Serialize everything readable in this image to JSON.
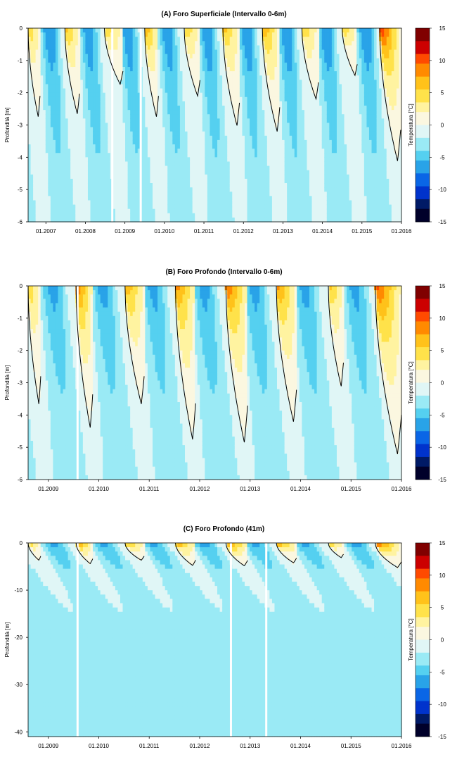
{
  "figure": {
    "colorbar": {
      "label": "Temperatura [°C]",
      "min": -15,
      "max": 15,
      "ticks": [
        15,
        10,
        5,
        0,
        -5,
        -10,
        -15
      ],
      "stops": [
        "#00002a",
        "#001a66",
        "#0033cc",
        "#0a66e6",
        "#29a3e8",
        "#55d0f0",
        "#9aeaf5",
        "#e0f6f6",
        "#fbf7e0",
        "#fff3a0",
        "#ffe24a",
        "#ffc21a",
        "#ff8a00",
        "#ff4a00",
        "#cc0000",
        "#800000"
      ]
    },
    "colors": {
      "background": "#ffffff",
      "zero_contour": "#000000"
    }
  },
  "chart_data": [
    {
      "type": "heatmap",
      "title": "(A) Foro Superficiale (Intervallo 0-6m)",
      "xlabel": "",
      "ylabel": "Profondità [m]",
      "ylim": [
        -6,
        0
      ],
      "yticks": [
        0,
        -1,
        -2,
        -3,
        -4,
        -5,
        -6
      ],
      "xlim": [
        2006.55,
        2016.0
      ],
      "xticks": [
        {
          "value": 2007,
          "label": "01.2007"
        },
        {
          "value": 2008,
          "label": "01.2008"
        },
        {
          "value": 2009,
          "label": "01.2009"
        },
        {
          "value": 2010,
          "label": "01.2010"
        },
        {
          "value": 2011,
          "label": "01.2011"
        },
        {
          "value": 2012,
          "label": "01.2012"
        },
        {
          "value": 2013,
          "label": "01.2013"
        },
        {
          "value": 2014,
          "label": "01.2014"
        },
        {
          "value": 2015,
          "label": "01.2015"
        },
        {
          "value": 2016,
          "label": "01.2016"
        }
      ],
      "thaw_seasons": [
        {
          "start": 2006.55,
          "end": 2006.85,
          "max_depth": -3.0,
          "peak_temp": 6
        },
        {
          "start": 2007.48,
          "end": 2007.85,
          "max_depth": -2.9,
          "peak_temp": 7
        },
        {
          "start": 2008.48,
          "end": 2008.95,
          "max_depth": -1.9,
          "peak_temp": 6
        },
        {
          "start": 2009.5,
          "end": 2009.85,
          "max_depth": -3.0,
          "peak_temp": 8
        },
        {
          "start": 2010.5,
          "end": 2010.9,
          "max_depth": -2.3,
          "peak_temp": 6
        },
        {
          "start": 2011.48,
          "end": 2011.9,
          "max_depth": -3.3,
          "peak_temp": 7
        },
        {
          "start": 2012.48,
          "end": 2012.92,
          "max_depth": -3.5,
          "peak_temp": 8
        },
        {
          "start": 2013.48,
          "end": 2013.9,
          "max_depth": -2.4,
          "peak_temp": 6
        },
        {
          "start": 2014.5,
          "end": 2014.88,
          "max_depth": -1.6,
          "peak_temp": 6
        },
        {
          "start": 2015.45,
          "end": 2015.98,
          "max_depth": -4.5,
          "peak_temp": 12
        }
      ],
      "winter_min_temp": -8,
      "deep_temp": -2,
      "data_gaps": [
        2008.68,
        2009.4
      ]
    },
    {
      "type": "heatmap",
      "title": "(B) Foro Profondo (Intervallo 0-6m)",
      "xlabel": "",
      "ylabel": "Profondità [m]",
      "ylim": [
        -6,
        0
      ],
      "yticks": [
        0,
        -1,
        -2,
        -3,
        -4,
        -5,
        -6
      ],
      "xlim": [
        2008.6,
        2016.0
      ],
      "xticks": [
        {
          "value": 2009,
          "label": "01.2009"
        },
        {
          "value": 2010,
          "label": "01.2010"
        },
        {
          "value": 2011,
          "label": "01.2011"
        },
        {
          "value": 2012,
          "label": "01.2012"
        },
        {
          "value": 2013,
          "label": "01.2013"
        },
        {
          "value": 2014,
          "label": "01.2014"
        },
        {
          "value": 2015,
          "label": "01.2015"
        },
        {
          "value": 2016,
          "label": "01.2016"
        }
      ],
      "thaw_seasons": [
        {
          "start": 2008.6,
          "end": 2008.85,
          "max_depth": -4.0,
          "peak_temp": 6
        },
        {
          "start": 2009.55,
          "end": 2009.88,
          "max_depth": -4.8,
          "peak_temp": 10
        },
        {
          "start": 2010.52,
          "end": 2010.9,
          "max_depth": -4.0,
          "peak_temp": 8
        },
        {
          "start": 2011.52,
          "end": 2011.92,
          "max_depth": -5.2,
          "peak_temp": 9
        },
        {
          "start": 2012.52,
          "end": 2012.95,
          "max_depth": -5.3,
          "peak_temp": 10
        },
        {
          "start": 2013.52,
          "end": 2013.92,
          "max_depth": -4.6,
          "peak_temp": 9
        },
        {
          "start": 2014.55,
          "end": 2014.85,
          "max_depth": -3.4,
          "peak_temp": 7
        },
        {
          "start": 2015.48,
          "end": 2016.0,
          "max_depth": -5.7,
          "peak_temp": 11
        }
      ],
      "winter_min_temp": -7,
      "deep_temp": -2,
      "data_gaps": [
        2009.58
      ]
    },
    {
      "type": "heatmap",
      "title": "(C) Foro Profondo (41m)",
      "xlabel": "",
      "ylabel": "Profondità [m]",
      "ylim": [
        -41,
        0
      ],
      "yticks": [
        0,
        -10,
        -20,
        -30,
        -40
      ],
      "xlim": [
        2008.6,
        2016.0
      ],
      "xticks": [
        {
          "value": 2009,
          "label": "01.2009"
        },
        {
          "value": 2010,
          "label": "01.2010"
        },
        {
          "value": 2011,
          "label": "01.2011"
        },
        {
          "value": 2012,
          "label": "01.2012"
        },
        {
          "value": 2013,
          "label": "01.2013"
        },
        {
          "value": 2014,
          "label": "01.2014"
        },
        {
          "value": 2015,
          "label": "01.2015"
        },
        {
          "value": 2016,
          "label": "01.2016"
        }
      ],
      "thaw_seasons": [
        {
          "start": 2008.6,
          "end": 2008.85,
          "max_depth": -4.0,
          "peak_temp": 6
        },
        {
          "start": 2009.55,
          "end": 2009.88,
          "max_depth": -4.8,
          "peak_temp": 10
        },
        {
          "start": 2010.52,
          "end": 2010.9,
          "max_depth": -4.0,
          "peak_temp": 8
        },
        {
          "start": 2011.52,
          "end": 2011.92,
          "max_depth": -5.2,
          "peak_temp": 9
        },
        {
          "start": 2012.52,
          "end": 2012.95,
          "max_depth": -5.3,
          "peak_temp": 10
        },
        {
          "start": 2013.52,
          "end": 2013.92,
          "max_depth": -4.6,
          "peak_temp": 9
        },
        {
          "start": 2014.55,
          "end": 2014.85,
          "max_depth": -3.4,
          "peak_temp": 7
        },
        {
          "start": 2015.48,
          "end": 2016.0,
          "max_depth": -5.7,
          "peak_temp": 11
        }
      ],
      "winter_min_temp": -7,
      "deep_temp": -2,
      "data_gaps": [
        2009.58,
        2012.62,
        2013.32
      ]
    }
  ]
}
